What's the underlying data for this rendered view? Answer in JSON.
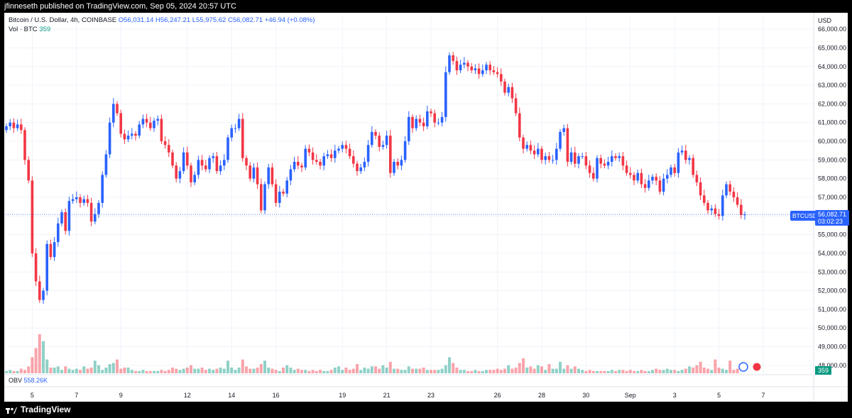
{
  "header": {
    "publisher_text": "jfinneseth published on TradingView.com, Sep 05, 2024 20:57 UTC"
  },
  "legend": {
    "symbol": "Bitcoin / U.S. Dollar, 4h, COINBASE",
    "open": "O56,031.14",
    "high": "H56,247.21",
    "low": "L55,975.62",
    "close": "C56,082.71",
    "change": "+46.94 (+0.08%)",
    "vol_label": "Vol · BTC",
    "vol_value": "359"
  },
  "obv": {
    "label": "OBV",
    "value": "558.26K"
  },
  "axis": {
    "currency": "USD"
  },
  "price_tag": {
    "symbol": "BTCUSD",
    "price": "56,082.71",
    "countdown": "03:02:23"
  },
  "vol_tag": "359",
  "footer": {
    "brand": "TradingView"
  },
  "colors": {
    "up": "#2962ff",
    "down": "#f23645",
    "vol_up": "#089981",
    "vol_down": "#f23645"
  },
  "chart_data": {
    "type": "candlestick",
    "ylim": [
      47500,
      66500
    ],
    "yticks": [
      48000,
      49000,
      50000,
      51000,
      52000,
      53000,
      54000,
      55000,
      56000,
      57000,
      58000,
      59000,
      60000,
      61000,
      62000,
      63000,
      64000,
      65000,
      66000
    ],
    "ytick_labels": [
      "48,000.00",
      "49,000.00",
      "50,000.00",
      "51,000.00",
      "52,000.00",
      "53,000.00",
      "54,000.00",
      "55,000.00",
      "56,000.00",
      "57,000.00",
      "58,000.00",
      "59,000.00",
      "60,000.00",
      "61,000.00",
      "62,000.00",
      "63,000.00",
      "64,000.00",
      "65,000.00",
      "66,000.00"
    ],
    "xticks": [
      {
        "label": "5",
        "bar": 7
      },
      {
        "label": "7",
        "bar": 19
      },
      {
        "label": "9",
        "bar": 31
      },
      {
        "label": "12",
        "bar": 49
      },
      {
        "label": "14",
        "bar": 61
      },
      {
        "label": "16",
        "bar": 73
      },
      {
        "label": "19",
        "bar": 91
      },
      {
        "label": "21",
        "bar": 103
      },
      {
        "label": "23",
        "bar": 115
      },
      {
        "label": "26",
        "bar": 133
      },
      {
        "label": "28",
        "bar": 145
      },
      {
        "label": "30",
        "bar": 157
      },
      {
        "label": "Sep",
        "bar": 169
      },
      {
        "label": "3",
        "bar": 181
      },
      {
        "label": "5",
        "bar": 193
      },
      {
        "label": "7",
        "bar": 205
      }
    ],
    "last_price": 56082.71,
    "closes": [
      60800,
      61000,
      60700,
      60900,
      60600,
      59000,
      57900,
      54000,
      52500,
      51500,
      52000,
      54500,
      53800,
      54600,
      55600,
      56200,
      55200,
      56800,
      56900,
      57000,
      56700,
      56900,
      56700,
      55700,
      56100,
      56700,
      58200,
      59300,
      61000,
      62000,
      61500,
      60400,
      60100,
      60300,
      60400,
      60300,
      60900,
      61200,
      61000,
      60700,
      61100,
      61200,
      60000,
      59800,
      59400,
      58700,
      58000,
      58400,
      59400,
      58700,
      57800,
      58200,
      59000,
      58700,
      58500,
      59100,
      59200,
      58400,
      58700,
      59000,
      60200,
      60700,
      60700,
      61200,
      59100,
      58700,
      58000,
      58600,
      57700,
      56300,
      57700,
      58600,
      57700,
      56700,
      57300,
      57200,
      57900,
      58500,
      58900,
      58700,
      58600,
      59600,
      59400,
      59000,
      58900,
      58700,
      59200,
      59300,
      59100,
      59500,
      59600,
      59800,
      59600,
      59200,
      58800,
      58400,
      58600,
      58900,
      59800,
      60500,
      60300,
      59700,
      59800,
      60300,
      58300,
      58900,
      58700,
      59000,
      60000,
      61300,
      60700,
      61200,
      61000,
      60800,
      61600,
      61500,
      61000,
      61000,
      61300,
      63700,
      64600,
      64300,
      63800,
      64100,
      64200,
      64000,
      63800,
      63900,
      63600,
      63800,
      64100,
      63800,
      63700,
      63600,
      63200,
      62600,
      62900,
      62300,
      61500,
      60200,
      59600,
      59800,
      59500,
      59300,
      59600,
      59000,
      59200,
      59000,
      59000,
      59600,
      60500,
      60700,
      58900,
      59400,
      58800,
      59200,
      59200,
      58700,
      58300,
      58000,
      59100,
      58800,
      58700,
      58900,
      59200,
      59100,
      59200,
      58700,
      58300,
      58200,
      57900,
      58300,
      57700,
      57500,
      57900,
      58100,
      57900,
      57300,
      58000,
      58200,
      58600,
      58300,
      59400,
      59500,
      59000,
      59100,
      58200,
      57800,
      57100,
      56700,
      56300,
      56400,
      56100,
      56000,
      57100,
      57700,
      57300,
      57000,
      56600,
      56050,
      56083
    ],
    "volumes": [
      0.2,
      0.3,
      0.2,
      0.2,
      0.4,
      0.3,
      0.6,
      1.4,
      2.2,
      3.4,
      2.8,
      1.2,
      0.5,
      0.5,
      0.6,
      0.3,
      0.6,
      0.4,
      0.3,
      0.4,
      0.3,
      0.6,
      0.4,
      0.5,
      1.1,
      0.7,
      0.3,
      0.5,
      0.8,
      0.9,
      1.2,
      0.4,
      0.5,
      0.5,
      0.3,
      0.2,
      0.2,
      0.3,
      0.2,
      0.2,
      0.2,
      0.2,
      0.3,
      0.2,
      0.3,
      0.5,
      0.4,
      0.3,
      0.4,
      0.5,
      0.7,
      0.4,
      0.4,
      0.5,
      0.3,
      0.4,
      0.3,
      0.4,
      0.5,
      0.4,
      1.1,
      0.5,
      0.3,
      0.5,
      1.2,
      0.6,
      0.4,
      0.4,
      0.5,
      0.8,
      1.1,
      0.5,
      0.4,
      0.3,
      0.2,
      0.5,
      0.7,
      0.5,
      0.3,
      0.4,
      0.3,
      0.3,
      0.2,
      0.3,
      0.2,
      0.3,
      0.2,
      0.2,
      0.3,
      0.5,
      0.6,
      0.3,
      0.5,
      0.3,
      0.4,
      0.8,
      0.3,
      0.5,
      0.4,
      0.6,
      0.6,
      0.4,
      0.7,
      0.5,
      1.0,
      0.4,
      0.4,
      0.3,
      0.3,
      0.6,
      0.4,
      0.4,
      0.4,
      0.5,
      0.3,
      0.3,
      0.3,
      0.3,
      0.4,
      0.7,
      1.4,
      0.9,
      0.5,
      0.3,
      0.3,
      0.2,
      0.2,
      0.3,
      0.2,
      0.2,
      0.3,
      0.3,
      0.3,
      0.4,
      0.3,
      0.4,
      0.7,
      0.4,
      0.5,
      0.9,
      1.3,
      0.5,
      0.6,
      0.4,
      0.7,
      0.6,
      0.3,
      0.8,
      0.4,
      0.4,
      1.0,
      0.4,
      0.7,
      0.4,
      0.6,
      0.4,
      0.3,
      0.2,
      0.3,
      0.2,
      0.2,
      0.2,
      0.2,
      0.2,
      0.3,
      0.2,
      0.3,
      0.3,
      0.2,
      0.3,
      0.2,
      0.2,
      0.3,
      0.2,
      0.2,
      0.3,
      0.4,
      0.3,
      0.3,
      0.4,
      0.3,
      0.3,
      0.2,
      0.3,
      0.4,
      0.6,
      0.5,
      0.7,
      1.0,
      0.5,
      0.4,
      0.3,
      1.2,
      0.5,
      0.4,
      0.3,
      1.1,
      0.3,
      0.4
    ]
  }
}
